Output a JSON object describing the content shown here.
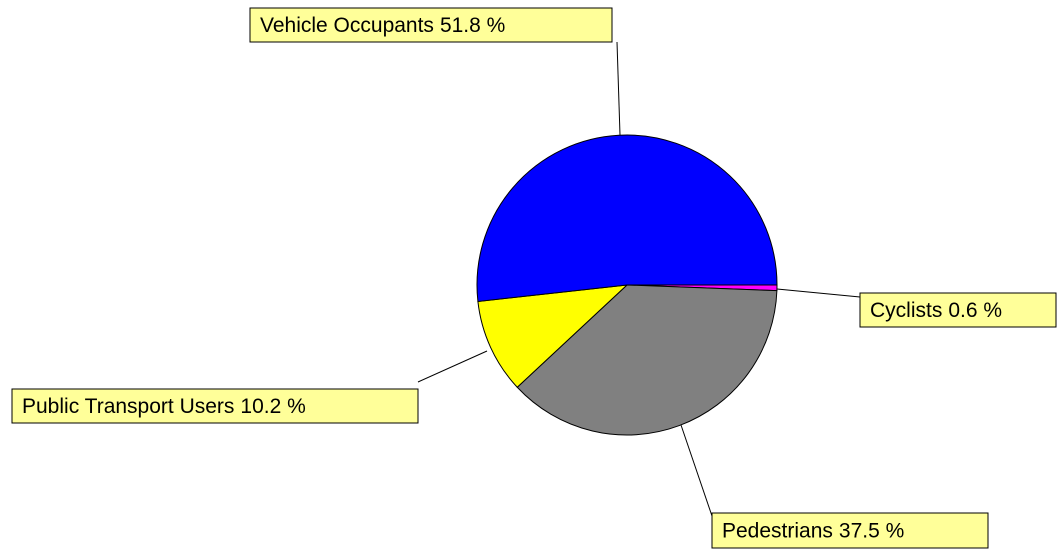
{
  "chart_data": {
    "type": "pie",
    "categories": [
      "Cyclists",
      "Pedestrians",
      "Public Transport Users",
      "Vehicle Occupants"
    ],
    "values": [
      0.6,
      37.5,
      10.2,
      51.8
    ],
    "value_labels": [
      "0.6 %",
      "37.5 %",
      "10.2 %",
      "51.8 %"
    ],
    "colors": [
      "#ff00ff",
      "#808080",
      "#ffff00",
      "#0000ff"
    ]
  }
}
